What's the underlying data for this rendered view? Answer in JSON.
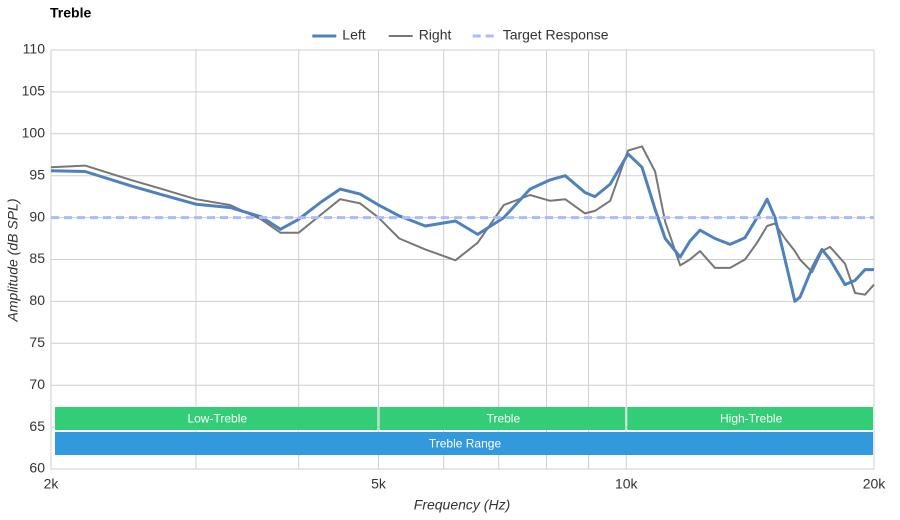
{
  "chart_data": {
    "type": "line",
    "title": "Treble",
    "xlabel": "Frequency (Hz)",
    "ylabel": "Amplitude (dB SPL)",
    "xscale": "log",
    "xlim": [
      2000,
      20000
    ],
    "ylim": [
      60,
      110
    ],
    "xticks": [
      {
        "value": 2000,
        "label": "2k"
      },
      {
        "value": 5000,
        "label": "5k"
      },
      {
        "value": 10000,
        "label": "10k"
      },
      {
        "value": 20000,
        "label": "20k"
      }
    ],
    "xgrid_minor": [
      3000,
      4000,
      6000,
      7000,
      8000,
      9000
    ],
    "yticks": [
      60,
      65,
      70,
      75,
      80,
      85,
      90,
      95,
      100,
      105,
      110
    ],
    "grid": true,
    "legend": "top",
    "series": [
      {
        "name": "Left",
        "color": "#4f81bd",
        "width": 3,
        "x": [
          2000,
          2200,
          2500,
          2710,
          3000,
          3300,
          3600,
          3800,
          4000,
          4250,
          4490,
          4750,
          5000,
          5300,
          5700,
          6200,
          6600,
          7100,
          7640,
          8080,
          8430,
          8910,
          9160,
          9560,
          10050,
          10450,
          10840,
          11150,
          11630,
          11950,
          12290,
          12820,
          13370,
          13940,
          14420,
          14830,
          15160,
          15590,
          16030,
          16260,
          16820,
          17290,
          17690,
          18440,
          18970,
          19500,
          20000
        ],
        "values": [
          95.6,
          95.5,
          93.8,
          92.8,
          91.6,
          91.2,
          90.1,
          88.6,
          89.8,
          91.8,
          93.4,
          92.8,
          91.5,
          90.2,
          89,
          89.6,
          88,
          90,
          93.4,
          94.5,
          95,
          93,
          92.5,
          94,
          97.6,
          96,
          91,
          87.5,
          85.3,
          87.2,
          88.5,
          87.5,
          86.8,
          87.6,
          90,
          92.2,
          90,
          85,
          80,
          80.5,
          84,
          86.2,
          85,
          82,
          82.5,
          83.8,
          83.8
        ]
      },
      {
        "name": "Right",
        "color": "#777777",
        "width": 2,
        "x": [
          2000,
          2200,
          2500,
          2710,
          3000,
          3300,
          3600,
          3800,
          4000,
          4250,
          4490,
          4750,
          5000,
          5300,
          5700,
          6200,
          6600,
          7100,
          7640,
          8080,
          8430,
          8910,
          9160,
          9560,
          10050,
          10450,
          10840,
          11150,
          11630,
          11950,
          12290,
          12820,
          13370,
          13940,
          14420,
          14830,
          15160,
          15590,
          16030,
          16260,
          16820,
          17290,
          17690,
          18440,
          18970,
          19500,
          20000
        ],
        "values": [
          96,
          96.2,
          94.5,
          93.5,
          92.2,
          91.5,
          89.8,
          88.2,
          88.2,
          90.3,
          92.2,
          91.7,
          90,
          87.5,
          86.2,
          84.9,
          87,
          91.5,
          92.7,
          92,
          92.2,
          90.5,
          90.8,
          92,
          98,
          98.5,
          95.5,
          89.5,
          84.3,
          85,
          86,
          84,
          84,
          85,
          87,
          89,
          89.3,
          87.5,
          86,
          85,
          83.5,
          86,
          86.5,
          84.5,
          81,
          80.8,
          82
        ]
      },
      {
        "name": "Target Response",
        "color": "#aabbff",
        "width": 3,
        "dashed": true,
        "x": [
          2000,
          20000
        ],
        "values": [
          90,
          90
        ]
      }
    ],
    "bands": [
      {
        "label": "Low-Treble",
        "range": [
          2000,
          5000
        ],
        "color": "#33cc77",
        "row": 0
      },
      {
        "label": "Treble",
        "range": [
          5000,
          10000
        ],
        "color": "#33cc77",
        "row": 0
      },
      {
        "label": "High-Treble",
        "range": [
          10000,
          20000
        ],
        "color": "#33cc77",
        "row": 0
      },
      {
        "label": "Treble Range",
        "range": [
          2000,
          20000
        ],
        "color": "#3399dd",
        "row": 1
      }
    ]
  }
}
